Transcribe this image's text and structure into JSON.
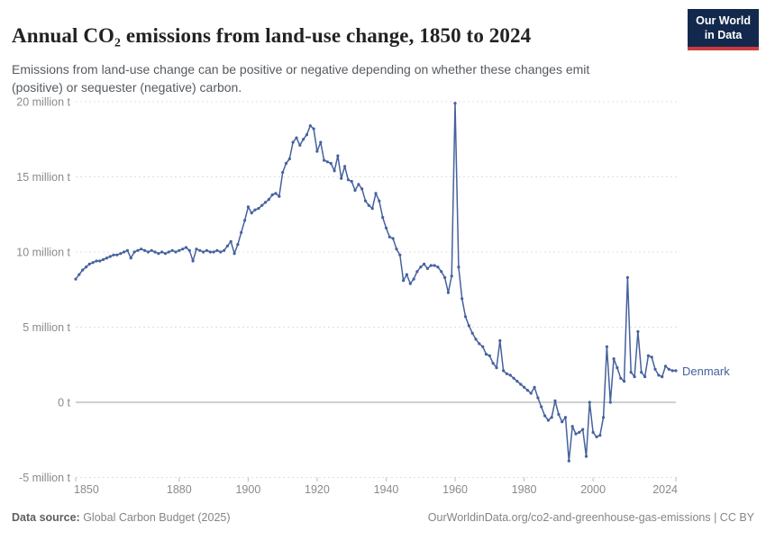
{
  "header": {
    "title": "Annual CO₂ emissions from land-use change, 1850 to 2024",
    "subtitle": "Emissions from land-use change can be positive or negative depending on whether these changes emit (positive) or sequester (negative) carbon.",
    "logo": {
      "line1": "Our World",
      "line2": "in Data"
    }
  },
  "footer": {
    "source_label": "Data source:",
    "source_value": " Global Carbon Budget (2025)",
    "link_text": "OurWorldinData.org/co2-and-greenhouse-gas-emissions | CC BY"
  },
  "colors": {
    "series_blue": "#45619e",
    "gridline": "#e0e0e0",
    "zero_line": "#a1a1a1",
    "tick_text": "#8a8a8a",
    "logo_bg": "#12294d",
    "logo_red": "#cf3a3f"
  },
  "chart_data": {
    "type": "line",
    "title": "Annual CO₂ emissions from land-use change, 1850 to 2024",
    "entity": "Denmark",
    "unit": "million t",
    "xlabel": "",
    "ylabel": "",
    "xlim": [
      1850,
      2024
    ],
    "ylim": [
      -5,
      20
    ],
    "grid": "horizontal dashed",
    "legend_position": "end-of-line label",
    "xticks": [
      1850,
      1880,
      1900,
      1920,
      1940,
      1960,
      1980,
      2000,
      2024
    ],
    "yticks": [
      {
        "value": 20,
        "label": "20 million t"
      },
      {
        "value": 15,
        "label": "15 million t"
      },
      {
        "value": 10,
        "label": "10 million t"
      },
      {
        "value": 5,
        "label": "5 million t"
      },
      {
        "value": 0,
        "label": "0 t"
      },
      {
        "value": -5,
        "label": "-5 million t"
      }
    ],
    "x": [
      1850,
      1851,
      1852,
      1853,
      1854,
      1855,
      1856,
      1857,
      1858,
      1859,
      1860,
      1861,
      1862,
      1863,
      1864,
      1865,
      1866,
      1867,
      1868,
      1869,
      1870,
      1871,
      1872,
      1873,
      1874,
      1875,
      1876,
      1877,
      1878,
      1879,
      1880,
      1881,
      1882,
      1883,
      1884,
      1885,
      1886,
      1887,
      1888,
      1889,
      1890,
      1891,
      1892,
      1893,
      1894,
      1895,
      1896,
      1897,
      1898,
      1899,
      1900,
      1901,
      1902,
      1903,
      1904,
      1905,
      1906,
      1907,
      1908,
      1909,
      1910,
      1911,
      1912,
      1913,
      1914,
      1915,
      1916,
      1917,
      1918,
      1919,
      1920,
      1921,
      1922,
      1923,
      1924,
      1925,
      1926,
      1927,
      1928,
      1929,
      1930,
      1931,
      1932,
      1933,
      1934,
      1935,
      1936,
      1937,
      1938,
      1939,
      1940,
      1941,
      1942,
      1943,
      1944,
      1945,
      1946,
      1947,
      1948,
      1949,
      1950,
      1951,
      1952,
      1953,
      1954,
      1955,
      1956,
      1957,
      1958,
      1959,
      1960,
      1961,
      1962,
      1963,
      1964,
      1965,
      1966,
      1967,
      1968,
      1969,
      1970,
      1971,
      1972,
      1973,
      1974,
      1975,
      1976,
      1977,
      1978,
      1979,
      1980,
      1981,
      1982,
      1983,
      1984,
      1985,
      1986,
      1987,
      1988,
      1989,
      1990,
      1991,
      1992,
      1993,
      1994,
      1995,
      1996,
      1997,
      1998,
      1999,
      2000,
      2001,
      2002,
      2003,
      2004,
      2005,
      2006,
      2007,
      2008,
      2009,
      2010,
      2011,
      2012,
      2013,
      2014,
      2015,
      2016,
      2017,
      2018,
      2019,
      2020,
      2021,
      2022,
      2023,
      2024
    ],
    "series": [
      {
        "name": "Denmark",
        "values": [
          8.2,
          8.5,
          8.8,
          9.0,
          9.2,
          9.3,
          9.4,
          9.4,
          9.5,
          9.6,
          9.7,
          9.8,
          9.8,
          9.9,
          10.0,
          10.1,
          9.6,
          10.0,
          10.1,
          10.2,
          10.1,
          10.0,
          10.1,
          10.0,
          9.9,
          10.0,
          9.9,
          10.0,
          10.1,
          10.0,
          10.1,
          10.2,
          10.3,
          10.1,
          9.4,
          10.2,
          10.1,
          10.0,
          10.1,
          10.0,
          10.0,
          10.1,
          10.0,
          10.1,
          10.4,
          10.7,
          9.9,
          10.5,
          11.3,
          12.1,
          13.0,
          12.6,
          12.8,
          12.9,
          13.1,
          13.3,
          13.5,
          13.8,
          13.9,
          13.7,
          15.3,
          15.9,
          16.2,
          17.3,
          17.6,
          17.1,
          17.5,
          17.8,
          18.4,
          18.2,
          16.7,
          17.3,
          16.1,
          16.0,
          15.9,
          15.4,
          16.4,
          14.9,
          15.7,
          14.8,
          14.7,
          14.1,
          14.5,
          14.2,
          13.4,
          13.1,
          12.9,
          13.9,
          13.4,
          12.3,
          11.6,
          11.0,
          10.9,
          10.2,
          9.8,
          8.1,
          8.5,
          7.9,
          8.2,
          8.7,
          9.0,
          9.2,
          8.9,
          9.1,
          9.1,
          9.0,
          8.7,
          8.3,
          7.3,
          8.4,
          19.9,
          9.0,
          6.9,
          5.7,
          5.1,
          4.6,
          4.2,
          3.9,
          3.7,
          3.2,
          3.1,
          2.6,
          2.3,
          4.1,
          2.1,
          1.9,
          1.8,
          1.6,
          1.4,
          1.2,
          1.0,
          0.8,
          0.6,
          1.0,
          0.3,
          -0.3,
          -0.9,
          -1.2,
          -1.0,
          0.1,
          -0.8,
          -1.3,
          -1.0,
          -3.9,
          -1.6,
          -2.1,
          -2.0,
          -1.8,
          -3.6,
          0.0,
          -2.0,
          -2.3,
          -2.2,
          -1.0,
          3.7,
          0.0,
          2.9,
          2.3,
          1.6,
          1.4,
          8.3,
          2.0,
          1.7,
          4.7,
          2.0,
          1.7,
          3.1,
          3.0,
          2.2,
          1.8,
          1.7,
          2.4,
          2.2,
          2.1,
          2.1
        ]
      }
    ]
  }
}
